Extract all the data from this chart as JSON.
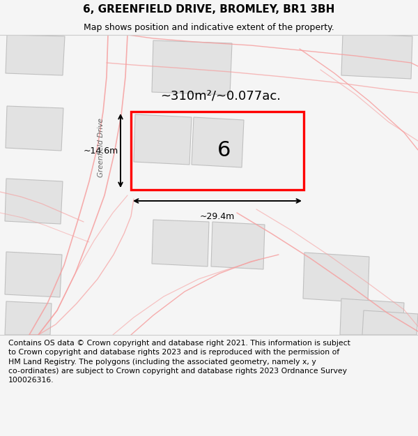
{
  "title": "6, GREENFIELD DRIVE, BROMLEY, BR1 3BH",
  "subtitle": "Map shows position and indicative extent of the property.",
  "area_text": "~310m²/~0.077ac.",
  "label_number": "6",
  "width_label": "~29.4m",
  "height_label": "~14.6m",
  "street_label": "Greenfield Drive",
  "footer_line1": "Contains OS data © Crown copyright and database right 2021. This information is subject",
  "footer_line2": "to Crown copyright and database rights 2023 and is reproduced with the permission of",
  "footer_line3": "HM Land Registry. The polygons (including the associated geometry, namely x, y",
  "footer_line4": "co-ordinates) are subject to Crown copyright and database rights 2023 Ordnance Survey",
  "footer_line5": "100026316.",
  "bg_color": "#f5f5f5",
  "map_bg": "#eeeeee",
  "building_fill": "#e2e2e2",
  "building_edge": "#c0c0c0",
  "road_color": "#f5a0a0",
  "highlight_color": "#ff0000",
  "footer_bg": "#ffffff",
  "title_fontsize": 11,
  "subtitle_fontsize": 9,
  "footer_fontsize": 7.8,
  "area_fontsize": 13,
  "label_fontsize": 22,
  "dim_fontsize": 9,
  "street_fontsize": 7.5
}
